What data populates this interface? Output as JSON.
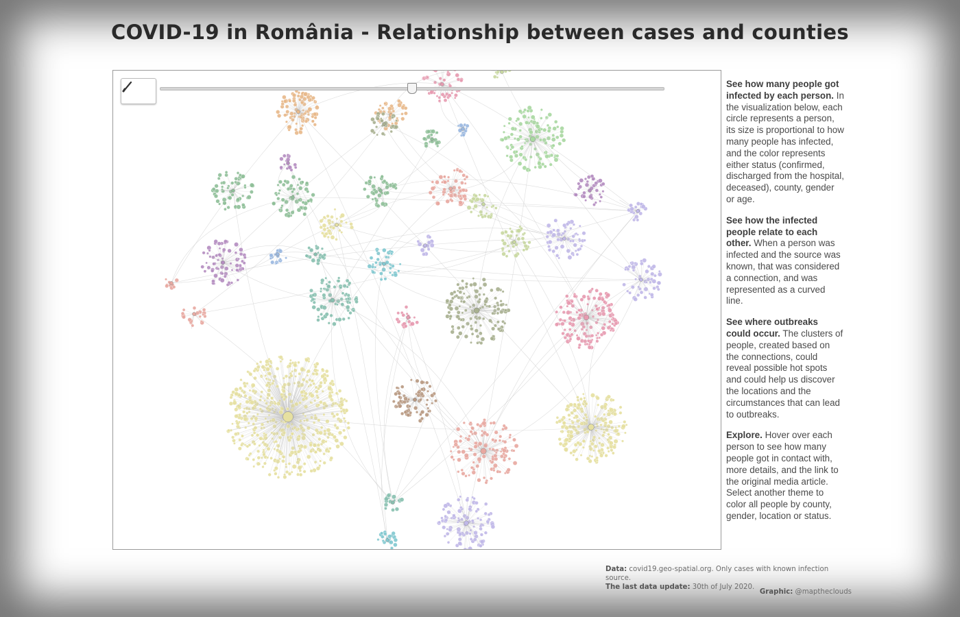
{
  "title": "COVID-19 in România - Relationship between cases and counties",
  "slider": {
    "value_fraction": 0.5
  },
  "toolbar": {
    "play_icon": "play-icon",
    "search_icon": "search-icon",
    "theme_icons": [
      "layers-icon",
      "location-pin-icon",
      "gender-icon",
      "alarm-clock-icon",
      "heart-icon"
    ],
    "zoom_icons": [
      "plus-icon",
      "minus-icon",
      "fullscreen-icon"
    ],
    "info_icon": "info-icon",
    "language_icons": [
      "romania-flag-icon",
      "uk-flag-icon"
    ]
  },
  "sidebar": {
    "p1_bold": "See how many people got infected by each person.",
    "p1_text": " In the visualization below, each circle represents a person, its size is proportional to how many people has infected, and the color represents either status (confirmed, discharged from the hospital, deceased), county, gender or age.",
    "p2_bold": "See how the infected people relate to each other.",
    "p2_text": " When a person was infected and the source was known, that was considered a connection, and was represented as a curved line.",
    "p3_bold": "See where outbreaks could occur.",
    "p3_text": " The clusters of people, created based on the connections, could reveal possible hot spots and could help us discover the locations and the circumstances that can lead to outbreaks.",
    "p4_bold": "Explore.",
    "p4_text": " Hover over each person to see how many people got in contact with, more details, and the link to the original media article. Select another theme to color all people by county, gender, location or status."
  },
  "credits": {
    "data_label": "Data:",
    "data_text": " covid19.geo-spatial.org. Only cases with known infection source.",
    "update_label": "The last data update:",
    "update_text": " 30th of July 2020.",
    "graphic_label": "Graphic:",
    "graphic_text": " @maptheclouds"
  },
  "colors": {
    "tan": "#e8b98a",
    "olive_yellow": "#e6e0a0",
    "green": "#a8d8a0",
    "sage": "#8fbf98",
    "purple": "#b48cc0",
    "teal": "#88c0b0",
    "pink": "#e79ab0",
    "lavender": "#c0b8e8",
    "brown": "#b89880",
    "grey_olive": "#a8b090",
    "blue": "#9ab8e0",
    "cyan": "#80c8d0",
    "salmon": "#e8a8a0",
    "lime": "#c8d8a0"
  }
}
